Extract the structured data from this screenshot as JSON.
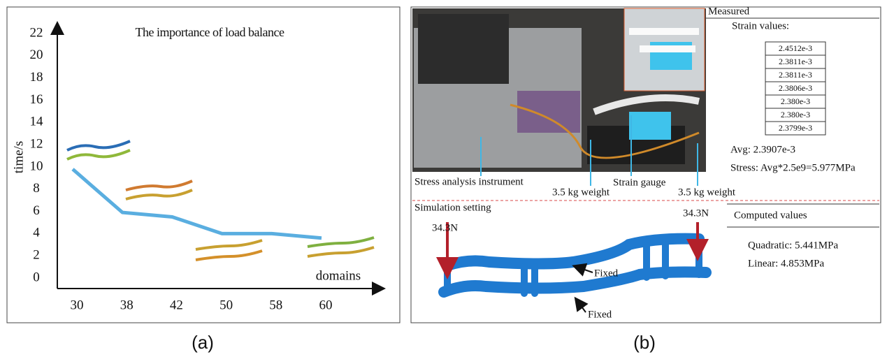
{
  "chart_data": {
    "type": "line",
    "title": "The importance of load balance",
    "x_label": "domains",
    "y_label": "time/s",
    "categories": [
      "30",
      "38",
      "42",
      "50",
      "58",
      "60"
    ],
    "values": [
      9.8,
      5.9,
      5.5,
      4.0,
      4.0,
      3.6
    ],
    "color": "#5aaee0",
    "ylim": [
      0,
      22
    ],
    "yticks": [
      0,
      2,
      4,
      6,
      8,
      10,
      12,
      14,
      16,
      18,
      20,
      22
    ],
    "grid": false,
    "caption": "(a)"
  },
  "panel_b": {
    "photo_labels": {
      "instrument": "Stress analysis instrument",
      "weight_left": "3.5 kg weight",
      "strain_gauge": "Strain gauge",
      "weight_right": "3.5 kg weight"
    },
    "measured": {
      "title": "Measured",
      "subtitle": "Strain values:",
      "strain_values": [
        "2.4512e-3",
        "2.3811e-3",
        "2.3811e-3",
        "2.3806e-3",
        "2.380e-3",
        "2.380e-3",
        "2.3799e-3"
      ],
      "avg": "Avg: 2.3907e-3",
      "stress": "Stress: Avg*2.5e9=5.977MPa"
    },
    "simulation": {
      "title": "Simulation setting",
      "force_left": "34.3N",
      "force_right": "34.3N",
      "fixed_top": "Fixed",
      "fixed_bottom": "Fixed"
    },
    "computed": {
      "title": "Computed values",
      "quadratic": "Quadratic: 5.441MPa",
      "linear": "Linear: 4.853MPa"
    },
    "caption": "(b)"
  }
}
